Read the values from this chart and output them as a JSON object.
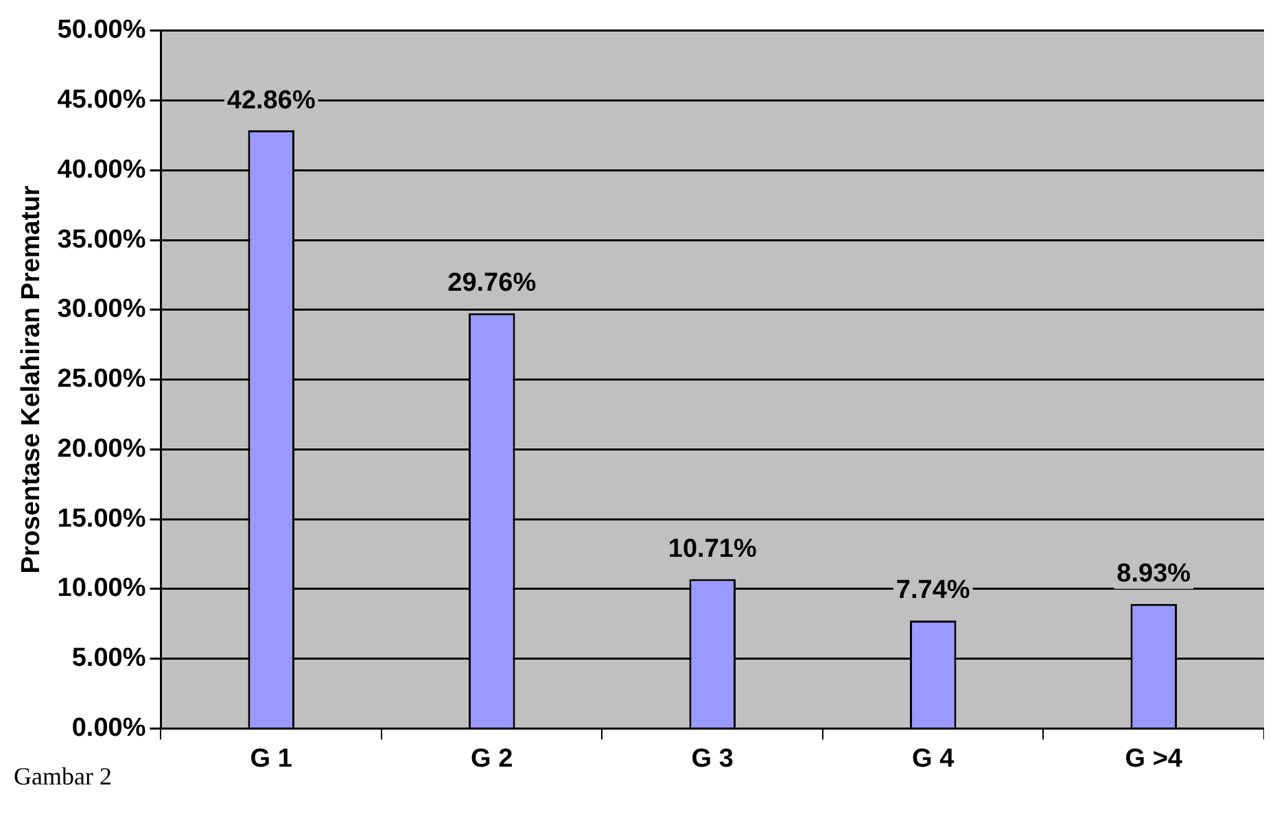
{
  "chart_data": {
    "type": "bar",
    "ylabel": "Prosentase Kelahiran Prematur",
    "categories": [
      "G 1",
      "G 2",
      "G 3",
      "G 4",
      "G >4"
    ],
    "values": [
      42.86,
      29.76,
      10.71,
      7.74,
      8.93
    ],
    "value_labels": [
      "42.86%",
      "29.76%",
      "10.71%",
      "7.74%",
      "8.93%"
    ],
    "color": "#9999ff",
    "ylim": [
      0,
      50
    ],
    "yticks": [
      {
        "value": 0,
        "label": "0.00%"
      },
      {
        "value": 5,
        "label": "5.00%"
      },
      {
        "value": 10,
        "label": "10.00%"
      },
      {
        "value": 15,
        "label": "15.00%"
      },
      {
        "value": 20,
        "label": "20.00%"
      },
      {
        "value": 25,
        "label": "25.00%"
      },
      {
        "value": 30,
        "label": "30.00%"
      },
      {
        "value": 35,
        "label": "35.00%"
      },
      {
        "value": 40,
        "label": "40.00%"
      },
      {
        "value": 45,
        "label": "45.00%"
      },
      {
        "value": 50,
        "label": "50.00%"
      }
    ],
    "grid": "y",
    "legend": false,
    "annotations": [
      "Gambar 2"
    ]
  }
}
